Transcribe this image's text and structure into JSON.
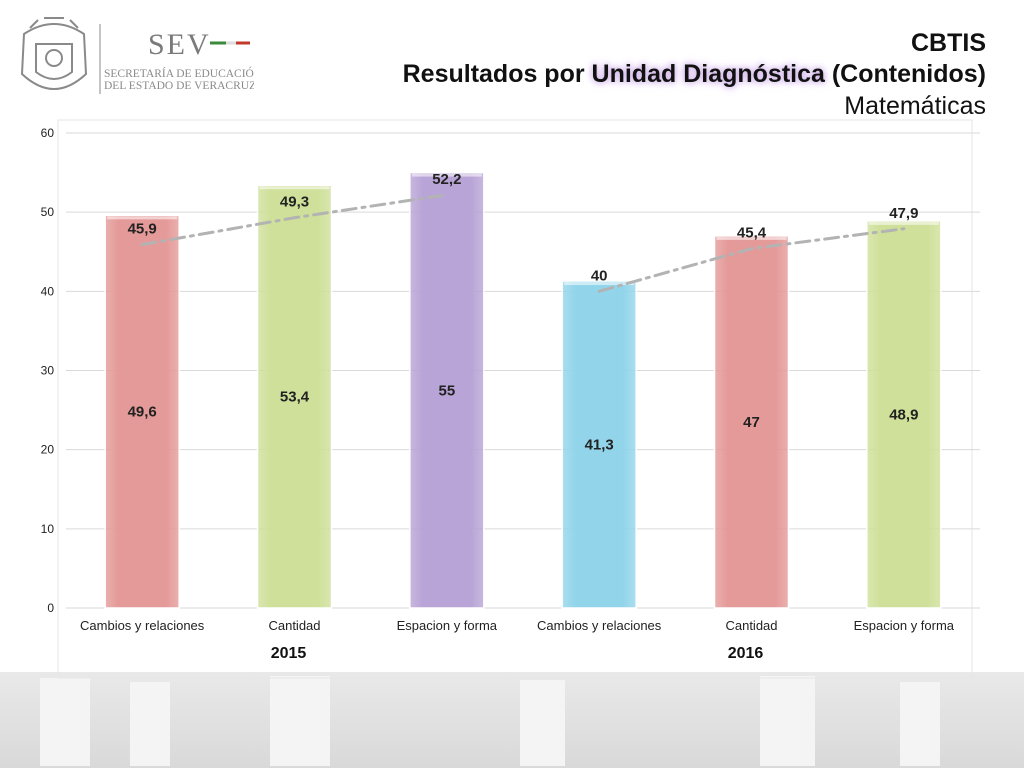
{
  "header": {
    "title_line1": "CBTIS",
    "title_line2_prefix": "Resultados por ",
    "title_line2_highlight": "Unidad Diagnóstica",
    "title_line2_suffix": " (Contenidos)",
    "title_line3": "Matemáticas"
  },
  "logo": {
    "brand": "SEV",
    "line1": "SECRETARÍA DE EDUCACIÓN",
    "line2": "DEL ESTADO DE VERACRUZ"
  },
  "chart_data": {
    "type": "bar",
    "categories": [
      "Cambios y relaciones",
      "Cantidad",
      "Espacion y forma",
      "Cambios y relaciones",
      "Cantidad",
      "Espacion y forma"
    ],
    "groups": [
      {
        "label": "2015",
        "indices": [
          0,
          1,
          2
        ]
      },
      {
        "label": "2016",
        "indices": [
          3,
          4,
          5
        ]
      }
    ],
    "bars": {
      "values": [
        49.6,
        53.4,
        55,
        41.3,
        47,
        48.9
      ],
      "labels": [
        "49,6",
        "53,4",
        "55",
        "41,3",
        "47",
        "48,9"
      ],
      "colors": [
        "#e49a98",
        "#cfe09a",
        "#b8a4d6",
        "#92d5ea",
        "#e49a98",
        "#cfe09a"
      ]
    },
    "trend": {
      "values": [
        45.9,
        49.3,
        52.2,
        40,
        45.4,
        47.9
      ],
      "labels": [
        "45,9",
        "49,3",
        "52,2",
        "40",
        "45,4",
        "47,9"
      ],
      "color": "#b3b3b3",
      "style": "dash-dot"
    },
    "ylim": [
      0,
      60
    ],
    "yticks": [
      "0",
      "10",
      "20",
      "30",
      "40",
      "50",
      "60"
    ],
    "grid": true
  }
}
